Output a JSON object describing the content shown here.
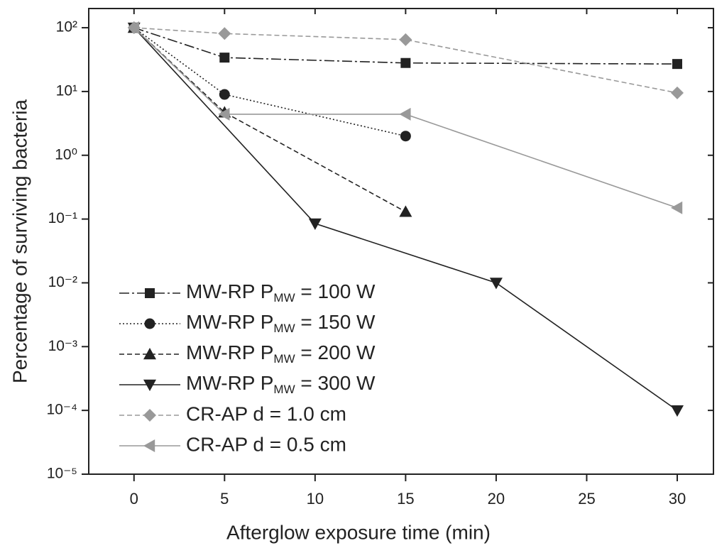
{
  "chart_data": {
    "type": "line",
    "x_label": "Afterglow exposure time (min)",
    "y_label": "Percentage of surviving bacteria",
    "xlim": [
      -2.5,
      32
    ],
    "xticks": [
      0,
      5,
      10,
      15,
      20,
      25,
      30
    ],
    "ylim": [
      1e-05,
      200
    ],
    "log_y": true,
    "yticks": [
      {
        "value": 1e-05,
        "label": "10⁻⁵"
      },
      {
        "value": 0.0001,
        "label": "10⁻⁴"
      },
      {
        "value": 0.001,
        "label": "10⁻³"
      },
      {
        "value": 0.01,
        "label": "10⁻²"
      },
      {
        "value": 0.1,
        "label": "10⁻¹"
      },
      {
        "value": 1,
        "label": "10⁰"
      },
      {
        "value": 10,
        "label": "10¹"
      },
      {
        "value": 100,
        "label": "10²"
      }
    ],
    "legend": "lower left",
    "series": [
      {
        "name": "MW-RP   PMW = 100 W",
        "color": "#222222",
        "marker": "square",
        "line_style": "dashdot",
        "x": [
          0,
          5,
          15,
          30
        ],
        "values": [
          100,
          34,
          28,
          27
        ]
      },
      {
        "name": "MW-RP   PMW = 150 W",
        "color": "#222222",
        "marker": "circle",
        "line_style": "dotted",
        "x": [
          0,
          5,
          15
        ],
        "values": [
          100,
          9,
          2
        ]
      },
      {
        "name": "MW-RP   PMW = 200 W",
        "color": "#222222",
        "marker": "triangle-up",
        "line_style": "dashed",
        "x": [
          0,
          5,
          15
        ],
        "values": [
          100,
          4.7,
          0.13
        ]
      },
      {
        "name": "MW-RP   PMW = 300 W",
        "color": "#222222",
        "marker": "triangle-down",
        "line_style": "solid",
        "x": [
          0,
          10,
          20,
          30
        ],
        "values": [
          100,
          0.085,
          0.01,
          0.0001
        ]
      },
      {
        "name": "CR-AP   d = 1.0 cm",
        "color": "#999999",
        "marker": "diamond",
        "line_style": "dashed",
        "x": [
          0,
          5,
          15,
          30
        ],
        "values": [
          100,
          81,
          65,
          9.5
        ]
      },
      {
        "name": "CR-AP   d = 0.5 cm",
        "color": "#999999",
        "marker": "triangle-left",
        "line_style": "solid",
        "x": [
          0,
          5,
          15,
          30
        ],
        "values": [
          100,
          4.4,
          4.4,
          0.15
        ]
      }
    ]
  }
}
